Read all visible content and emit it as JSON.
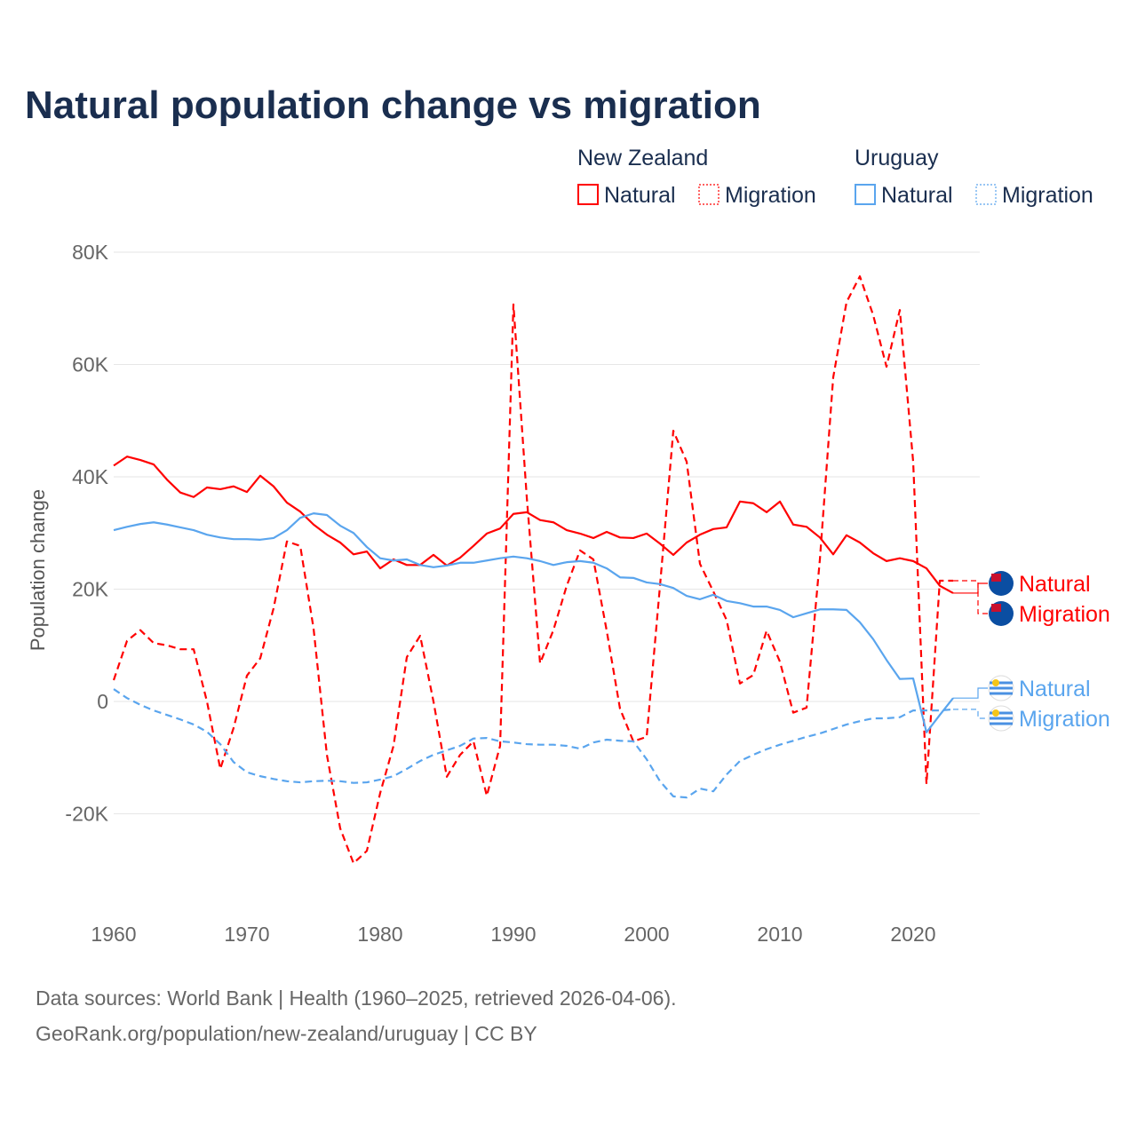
{
  "chart_data": {
    "type": "line",
    "title": "Natural population change vs migration",
    "xlabel": "",
    "ylabel": "Population change",
    "xlim": [
      1960,
      2025
    ],
    "ylim": [
      -30000,
      80000
    ],
    "x_ticks": [
      1960,
      1970,
      1980,
      1990,
      2000,
      2010,
      2020
    ],
    "x_tick_labels": [
      "1960",
      "1970",
      "1980",
      "1990",
      "2000",
      "2010",
      "2020"
    ],
    "y_ticks": [
      -20000,
      0,
      20000,
      40000,
      60000,
      80000
    ],
    "y_tick_labels": [
      "-20K",
      "0",
      "20K",
      "40K",
      "60K",
      "80K"
    ],
    "grid": true,
    "legend": {
      "placement": "top-right",
      "groups": [
        {
          "name": "New Zealand",
          "entries": [
            "Natural",
            "Migration"
          ]
        },
        {
          "name": "Uruguay",
          "entries": [
            "Natural",
            "Migration"
          ]
        }
      ]
    },
    "series": [
      {
        "name": "Natural",
        "country": "New Zealand",
        "color": "#ff0000",
        "dash": false,
        "start_year": 1960,
        "values": [
          42.0,
          43.6,
          43.0,
          42.2,
          39.5,
          37.2,
          36.4,
          38.1,
          37.8,
          38.3,
          37.3,
          40.2,
          38.3,
          35.4,
          33.8,
          31.5,
          29.7,
          28.3,
          26.2,
          26.7,
          23.7,
          25.3,
          24.3,
          24.3,
          26.1,
          24.2,
          25.6,
          27.7,
          29.9,
          30.8,
          33.4,
          33.7,
          32.3,
          31.9,
          30.5,
          29.9,
          29.1,
          30.2,
          29.2,
          29.1,
          29.9,
          28.1,
          26.1,
          28.3,
          29.7,
          30.7,
          31.0,
          35.6,
          35.3,
          33.7,
          35.6,
          31.5,
          31.1,
          29.2,
          26.2,
          29.6,
          28.3,
          26.4,
          25.0,
          25.5,
          25.0,
          23.7,
          20.6,
          19.3
        ]
      },
      {
        "name": "Migration",
        "country": "New Zealand",
        "color": "#ff0000",
        "dash": true,
        "start_year": 1960,
        "values": [
          3.8,
          10.8,
          12.7,
          10.4,
          10.0,
          9.3,
          9.3,
          0.0,
          -12.0,
          -4.7,
          4.6,
          7.7,
          16.6,
          28.5,
          27.7,
          13.0,
          -9.5,
          -22.6,
          -28.8,
          -26.6,
          -16.3,
          -7.9,
          7.9,
          11.7,
          0.0,
          -13.4,
          -9.5,
          -7.1,
          -16.8,
          -7.9,
          70.7,
          36.4,
          6.8,
          12.7,
          20.6,
          26.9,
          25.3,
          12.6,
          -1.3,
          -7.1,
          -6.3,
          20.6,
          48.2,
          42.7,
          24.5,
          19.6,
          14.5,
          3.2,
          4.7,
          12.6,
          7.1,
          -2.0,
          -1.1,
          25.3,
          57.7,
          71.1,
          75.7,
          68.8,
          59.6,
          69.7,
          42.7,
          -14.7,
          21.5,
          21.5
        ]
      },
      {
        "name": "Natural",
        "country": "Uruguay",
        "color": "#5aa5ee",
        "dash": false,
        "start_year": 1960,
        "values": [
          30.5,
          31.1,
          31.6,
          31.9,
          31.5,
          31.0,
          30.5,
          29.7,
          29.2,
          28.9,
          28.9,
          28.8,
          29.1,
          30.5,
          32.7,
          33.5,
          33.2,
          31.3,
          30.0,
          27.5,
          25.5,
          25.1,
          25.3,
          24.3,
          23.9,
          24.2,
          24.7,
          24.7,
          25.1,
          25.5,
          25.8,
          25.5,
          25.0,
          24.3,
          24.8,
          25.0,
          24.7,
          23.7,
          22.1,
          22.0,
          21.2,
          20.9,
          20.2,
          18.8,
          18.2,
          19.0,
          17.9,
          17.5,
          16.9,
          16.9,
          16.3,
          15.0,
          15.7,
          16.4,
          16.4,
          16.3,
          14.1,
          11.1,
          7.4,
          4.0,
          4.1,
          -5.5,
          -2.4,
          0.6
        ]
      },
      {
        "name": "Migration",
        "country": "Uruguay",
        "color": "#5aa5ee",
        "dash": true,
        "start_year": 1960,
        "values": [
          2.2,
          0.6,
          -0.6,
          -1.6,
          -2.4,
          -3.2,
          -4.1,
          -5.4,
          -7.6,
          -10.8,
          -12.6,
          -13.3,
          -13.8,
          -14.2,
          -14.4,
          -14.2,
          -14.1,
          -14.2,
          -14.5,
          -14.4,
          -13.9,
          -13.3,
          -12.0,
          -10.6,
          -9.5,
          -8.7,
          -7.9,
          -6.6,
          -6.5,
          -7.1,
          -7.3,
          -7.6,
          -7.7,
          -7.7,
          -7.9,
          -8.4,
          -7.3,
          -6.8,
          -7.0,
          -7.1,
          -10.3,
          -14.2,
          -16.9,
          -17.1,
          -15.5,
          -16.0,
          -13.0,
          -10.6,
          -9.5,
          -8.5,
          -7.7,
          -7.0,
          -6.3,
          -5.7,
          -4.9,
          -4.1,
          -3.5,
          -3.0,
          -3.0,
          -2.8,
          -1.6,
          -1.6,
          -1.6,
          -1.4
        ]
      }
    ],
    "values_unit": "thousands",
    "end_labels": [
      "Natural",
      "Migration",
      "Natural",
      "Migration"
    ]
  },
  "source": {
    "line1": "Data sources: World Bank | Health (1960–2025, retrieved 2026-04-06).",
    "line2": "GeoRank.org/population/new-zealand/uruguay | CC BY"
  }
}
